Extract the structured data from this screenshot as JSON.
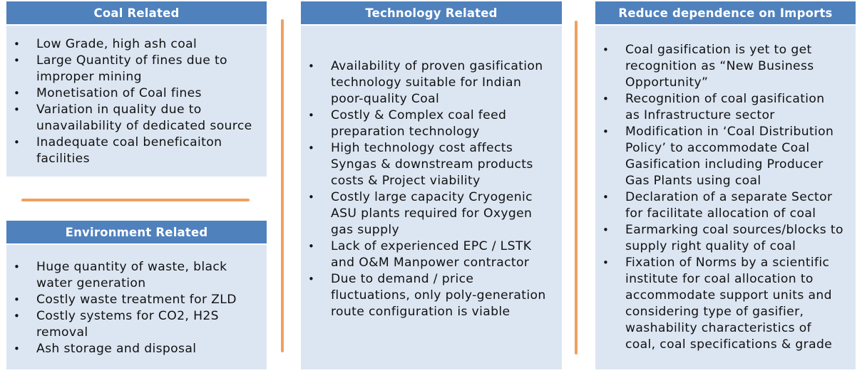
{
  "coal": {
    "title": "Coal Related",
    "items": [
      "Low Grade, high ash coal",
      "Large Quantity of fines due to\nimproper mining",
      "Monetisation of Coal fines",
      "Variation in quality due to\nunavailability of dedicated source",
      "Inadequate coal beneficaiton\nfacilities"
    ]
  },
  "environment": {
    "title": "Environment Related",
    "items": [
      "Huge quantity of waste, black\nwater generation",
      "Costly waste treatment for ZLD",
      "Costly systems for CO2, H2S\nremoval",
      "Ash storage and disposal"
    ]
  },
  "technology": {
    "title": "Technology Related",
    "items": [
      "Availability of proven gasification\ntechnology suitable for Indian\npoor-quality Coal",
      "Costly & Complex coal feed\npreparation technology",
      "High technology cost affects\nSyngas & downstream products\ncosts & Project viability",
      "Costly large capacity Cryogenic\nASU plants required for Oxygen\ngas supply",
      "Lack of experienced EPC / LSTK\nand O&M Manpower contractor",
      "Due to demand / price\nfluctuations, only poly-generation\nroute configuration is viable"
    ]
  },
  "imports": {
    "title": "Reduce dependence on Imports",
    "items": [
      "Coal gasification is yet to get\nrecognition as “New Business\nOpportunity”",
      "Recognition of coal gasification\nas Infrastructure sector",
      "Modification in ‘Coal Distribution\nPolicy’ to accommodate Coal\nGasification including Producer\nGas Plants using coal",
      "Declaration of a separate Sector\nfor facilitate allocation of coal",
      "Earmarking coal sources/blocks to\nsupply right quality of coal",
      "Fixation of Norms by a scientific\ninstitute for coal allocation to\naccommodate support units and\nconsidering type of gasifier,\nwashability characteristics of\ncoal, coal specifications & grade"
    ]
  },
  "colors": {
    "header_bg": "#4f81bd",
    "panel_bg": "#dce6f2",
    "divider": "#f0a060"
  }
}
